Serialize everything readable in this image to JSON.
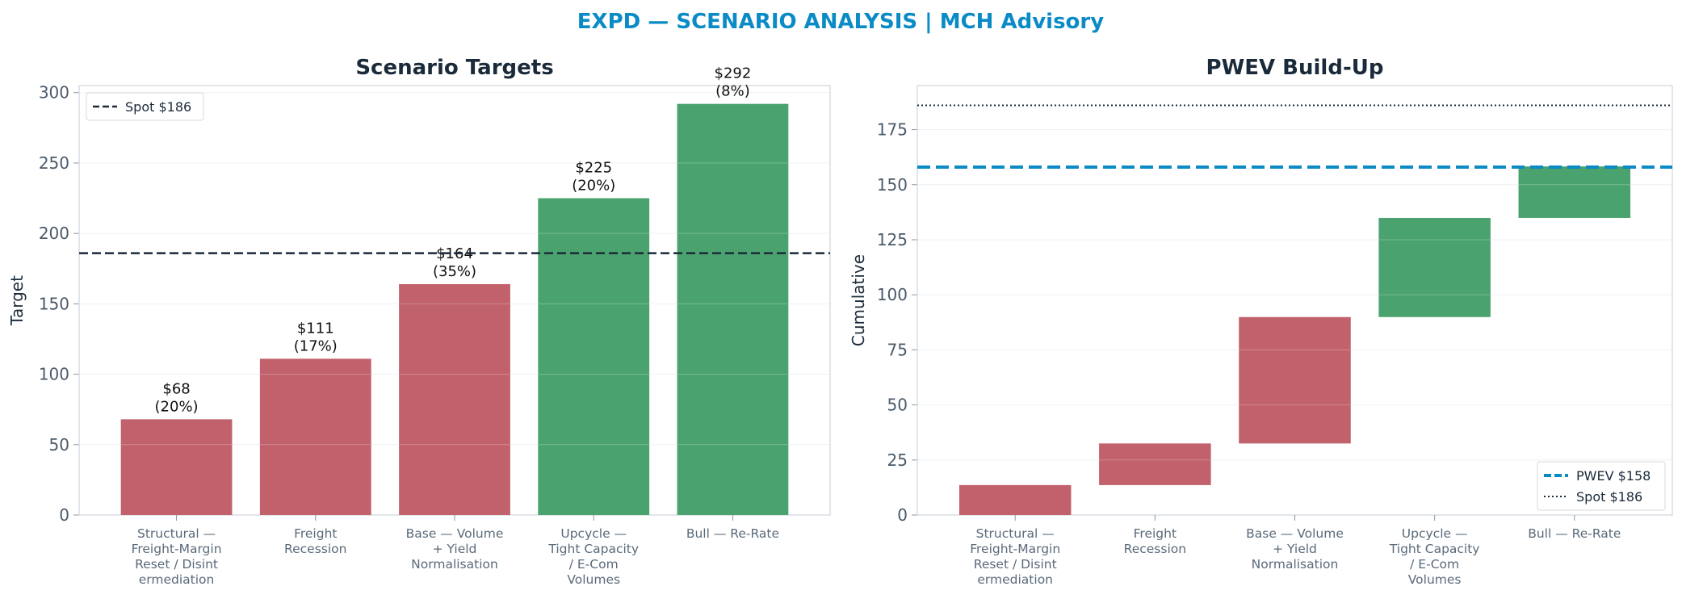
{
  "page": {
    "title": "EXPD — SCENARIO ANALYSIS | MCH Advisory"
  },
  "colors": {
    "title": "#0b8bc6",
    "bear": "#c1616b",
    "bull": "#4aa36e",
    "spot": "#1b2a3a",
    "pwev": "#0b8bc6",
    "axis": "#cfd6dd",
    "grid": "#eef1f4"
  },
  "chart_data": [
    {
      "type": "bar",
      "title": "Scenario Targets",
      "ylabel": "Target",
      "xlabel": "",
      "ylim": [
        0,
        305
      ],
      "yticks": [
        0,
        50,
        100,
        150,
        200,
        250,
        300
      ],
      "categories": [
        [
          "Structural —",
          "Freight-Margin",
          "Reset / Disint",
          "ermediation"
        ],
        [
          "Freight",
          "Recession"
        ],
        [
          "Base — Volume",
          "+ Yield",
          "Normalisation"
        ],
        [
          "Upcycle —",
          "Tight Capacity",
          "/ E-Com",
          "Volumes"
        ],
        [
          "Bull — Re-Rate"
        ]
      ],
      "values": [
        68,
        111,
        164,
        225,
        292
      ],
      "bar_colors": [
        "bear",
        "bear",
        "bear",
        "bull",
        "bull"
      ],
      "value_labels": [
        "$68",
        "$111",
        "$164",
        "$225",
        "$292"
      ],
      "prob_labels": [
        "(20%)",
        "(17%)",
        "(35%)",
        "(20%)",
        "(8%)"
      ],
      "reference_lines": [
        {
          "name": "Spot $186",
          "value": 186,
          "style": "dashed"
        }
      ],
      "legend": {
        "position": "top-left",
        "entries": [
          "Spot $186"
        ]
      },
      "grid": true
    },
    {
      "type": "bar",
      "subtype": "waterfall",
      "title": "PWEV Build-Up",
      "ylabel": "Cumulative",
      "xlabel": "",
      "ylim": [
        0,
        195
      ],
      "yticks": [
        0,
        25,
        50,
        75,
        100,
        125,
        150,
        175
      ],
      "categories": [
        [
          "Structural —",
          "Freight-Margin",
          "Reset / Disint",
          "ermediation"
        ],
        [
          "Freight",
          "Recession"
        ],
        [
          "Base — Volume",
          "+ Yield",
          "Normalisation"
        ],
        [
          "Upcycle —",
          "Tight Capacity",
          "/ E-Com",
          "Volumes"
        ],
        [
          "Bull — Re-Rate"
        ]
      ],
      "segments": [
        {
          "start": 0,
          "end": 13.6
        },
        {
          "start": 13.6,
          "end": 32.5
        },
        {
          "start": 32.5,
          "end": 89.9
        },
        {
          "start": 89.9,
          "end": 134.9
        },
        {
          "start": 134.9,
          "end": 158.3
        }
      ],
      "bar_colors": [
        "bear",
        "bear",
        "bear",
        "bull",
        "bull"
      ],
      "reference_lines": [
        {
          "name": "PWEV $158",
          "value": 158,
          "style": "dashed-thick"
        },
        {
          "name": "Spot $186",
          "value": 186,
          "style": "dotted"
        }
      ],
      "legend": {
        "position": "bottom-right",
        "entries": [
          "PWEV $158",
          "Spot $186"
        ]
      },
      "grid": true
    }
  ]
}
